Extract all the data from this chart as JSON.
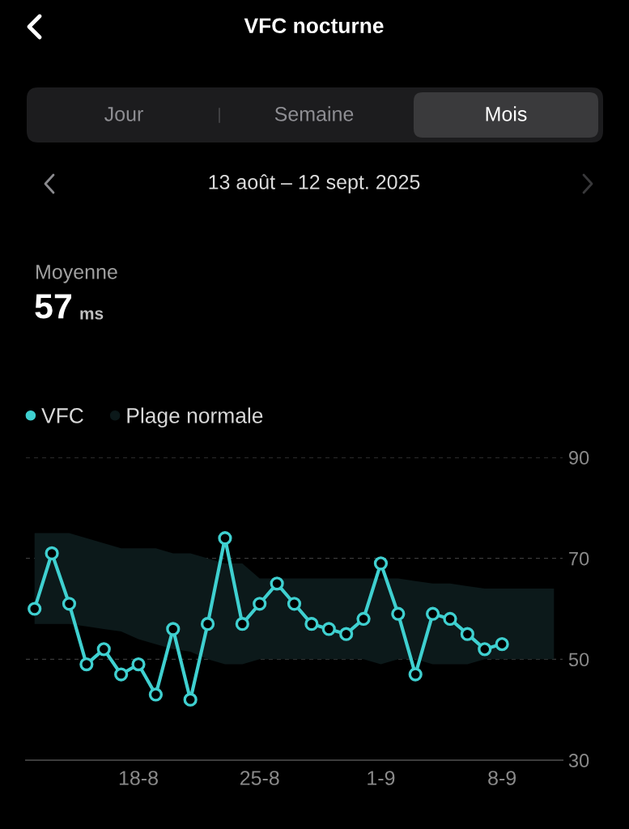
{
  "chart_data": {
    "type": "line",
    "title": "VFC nocturne",
    "subtitle": "13 août – 12 sept. 2025",
    "annotations": [
      "Jour",
      "Semaine",
      "Mois",
      "Moyenne",
      "57",
      "ms"
    ],
    "x": [
      "2025-08-12",
      "2025-08-13",
      "2025-08-14",
      "2025-08-15",
      "2025-08-16",
      "2025-08-17",
      "2025-08-18",
      "2025-08-19",
      "2025-08-20",
      "2025-08-21",
      "2025-08-22",
      "2025-08-23",
      "2025-08-24",
      "2025-08-25",
      "2025-08-26",
      "2025-08-27",
      "2025-08-28",
      "2025-08-29",
      "2025-08-30",
      "2025-08-31",
      "2025-09-01",
      "2025-09-02",
      "2025-09-03",
      "2025-09-04",
      "2025-09-05",
      "2025-09-06",
      "2025-09-07",
      "2025-09-08"
    ],
    "series": [
      {
        "name": "VFC",
        "color": "#3fd0d0",
        "values": [
          60,
          71,
          61,
          49,
          52,
          47,
          49,
          43,
          56,
          42,
          57,
          74,
          57,
          61,
          65,
          61,
          57,
          56,
          55,
          58,
          69,
          59,
          47,
          59,
          58,
          55,
          52,
          53
        ]
      },
      {
        "name": "Plage normale",
        "type": "area",
        "color": "#0c191a",
        "x": [
          "2025-08-12",
          "2025-08-13",
          "2025-08-14",
          "2025-08-15",
          "2025-08-16",
          "2025-08-17",
          "2025-08-18",
          "2025-08-19",
          "2025-08-20",
          "2025-08-21",
          "2025-08-22",
          "2025-08-23",
          "2025-08-24",
          "2025-08-25",
          "2025-08-26",
          "2025-08-27",
          "2025-08-28",
          "2025-08-29",
          "2025-08-30",
          "2025-08-31",
          "2025-09-01",
          "2025-09-02",
          "2025-09-03",
          "2025-09-04",
          "2025-09-05",
          "2025-09-06",
          "2025-09-07",
          "2025-09-08",
          "2025-09-09",
          "2025-09-10",
          "2025-09-11"
        ],
        "values": [
          null,
          null,
          null,
          null,
          null,
          null,
          null,
          null,
          null,
          null,
          null,
          null,
          null,
          null,
          null,
          null,
          null,
          null,
          null,
          null,
          null,
          null,
          null,
          null,
          null,
          null,
          null,
          null,
          null,
          null,
          null
        ],
        "lower": [
          57,
          57,
          57,
          56.5,
          56,
          55.5,
          54,
          53,
          52,
          51.5,
          50,
          49,
          49,
          50,
          50,
          50,
          50,
          50,
          50,
          50,
          49,
          50,
          50,
          49,
          49,
          49,
          50,
          50,
          50,
          50,
          50
        ],
        "upper": [
          75,
          75,
          75,
          74,
          73,
          72,
          72,
          72,
          71,
          71,
          70,
          69,
          69,
          66,
          66,
          66,
          66,
          66,
          66,
          66,
          66,
          66,
          65.5,
          65,
          65,
          64.5,
          64,
          64,
          64,
          64,
          64
        ]
      }
    ],
    "xlim": [
      "2025-08-11T12:00",
      "2025-09-11T12:00"
    ],
    "xticks": [
      {
        "value": "2025-08-18",
        "label": "18-8"
      },
      {
        "value": "2025-08-25",
        "label": "25-8"
      },
      {
        "value": "2025-09-01",
        "label": "1-9"
      },
      {
        "value": "2025-09-08",
        "label": "8-9"
      }
    ],
    "ylim": [
      30,
      90
    ],
    "yticks": [
      30,
      50,
      70,
      90
    ],
    "grid": "y",
    "legend": "top left",
    "marker": "circle",
    "line_style": "solid"
  }
}
